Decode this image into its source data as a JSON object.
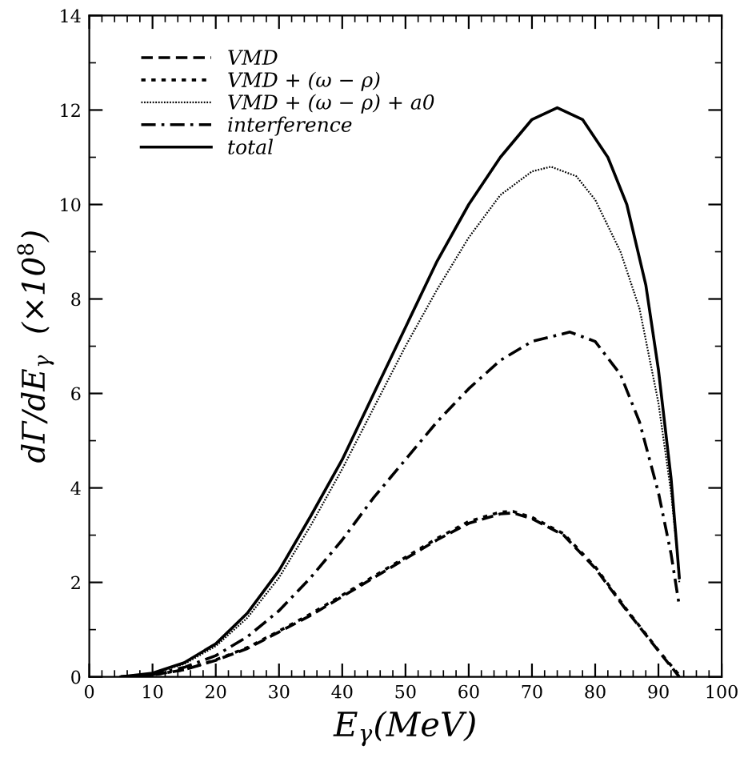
{
  "chart_data": {
    "type": "line",
    "xlabel": "E$_{γ}$(MeV)",
    "ylabel": "dΓ/dE$_{γ}$  (×10$^{8}$)",
    "xlim": [
      0,
      100
    ],
    "ylim": [
      0,
      14
    ],
    "xticks": [
      0,
      10,
      20,
      30,
      40,
      50,
      60,
      70,
      80,
      90,
      100
    ],
    "yticks": [
      0,
      2,
      4,
      6,
      8,
      10,
      12,
      14
    ],
    "grid": false,
    "legend": "top left",
    "marker": "none",
    "series": [
      {
        "name": "VMD",
        "color": "#000000",
        "line_style": "dashed",
        "x": [
          5,
          10,
          15,
          20,
          25,
          30,
          35,
          40,
          45,
          50,
          55,
          60,
          65,
          67,
          70,
          75,
          80,
          85,
          90,
          93.3
        ],
        "values": [
          0,
          0.04,
          0.15,
          0.35,
          0.6,
          0.95,
          1.3,
          1.7,
          2.1,
          2.5,
          2.9,
          3.25,
          3.45,
          3.47,
          3.35,
          3.0,
          2.3,
          1.4,
          0.55,
          0
        ]
      },
      {
        "name": "VMD + (ω − ρ)",
        "color": "#000000",
        "line_style": "dotted",
        "x": [
          6,
          10,
          15,
          20,
          25,
          30,
          35,
          40,
          45,
          50,
          55,
          60,
          65,
          67,
          70,
          75,
          80,
          85,
          90,
          93.2
        ],
        "values": [
          0.01,
          0.04,
          0.15,
          0.36,
          0.62,
          0.97,
          1.33,
          1.73,
          2.13,
          2.53,
          2.93,
          3.29,
          3.49,
          3.5,
          3.38,
          3.03,
          2.33,
          1.42,
          0.56,
          0.05
        ]
      },
      {
        "name": "VMD + (ω − ρ) + a0",
        "color": "#000000",
        "line_style": "densely dotted",
        "x": [
          5,
          10,
          15,
          20,
          25,
          30,
          35,
          40,
          45,
          50,
          55,
          60,
          65,
          70,
          73,
          77,
          80,
          84,
          87,
          90,
          92,
          93,
          93.3
        ],
        "values": [
          0,
          0.07,
          0.27,
          0.65,
          1.25,
          2.1,
          3.2,
          4.4,
          5.7,
          7.0,
          8.2,
          9.3,
          10.2,
          10.7,
          10.8,
          10.6,
          10.1,
          9.0,
          7.8,
          5.8,
          3.9,
          2.6,
          2.0
        ]
      },
      {
        "name": "interference",
        "color": "#000000",
        "line_style": "dashdot",
        "x": [
          5,
          10,
          15,
          20,
          25,
          30,
          35,
          40,
          45,
          50,
          55,
          60,
          65,
          70,
          76,
          80,
          84,
          87,
          90,
          92,
          93.3
        ],
        "values": [
          0,
          0.05,
          0.2,
          0.45,
          0.85,
          1.4,
          2.1,
          2.9,
          3.8,
          4.6,
          5.4,
          6.1,
          6.7,
          7.1,
          7.3,
          7.1,
          6.4,
          5.4,
          3.9,
          2.6,
          1.5
        ]
      },
      {
        "name": "total",
        "color": "#000000",
        "line_style": "solid",
        "x": [
          5,
          10,
          15,
          20,
          25,
          30,
          35,
          40,
          45,
          50,
          55,
          60,
          65,
          70,
          74,
          78,
          82,
          85,
          88,
          90,
          92,
          93,
          93.3
        ],
        "values": [
          0,
          0.08,
          0.3,
          0.7,
          1.35,
          2.25,
          3.4,
          4.6,
          6.0,
          7.4,
          8.8,
          10.0,
          11.0,
          11.8,
          12.05,
          11.8,
          11.0,
          10.0,
          8.3,
          6.5,
          4.2,
          2.6,
          2.1
        ]
      }
    ]
  }
}
